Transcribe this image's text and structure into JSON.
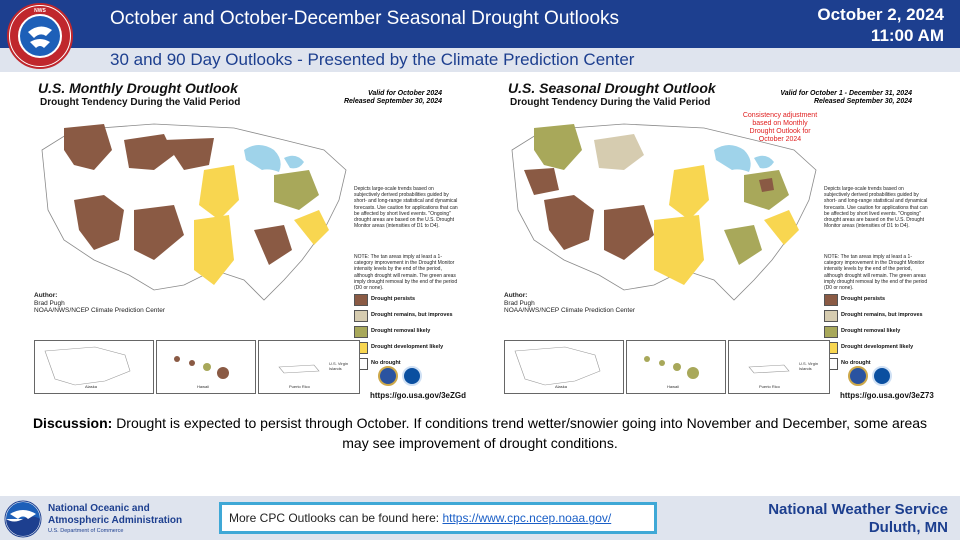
{
  "header": {
    "title": "October and October-December Seasonal Drought Outlooks",
    "subtitle": "30 and 90 Day Outlooks - Presented by the Climate Prediction Center",
    "date": "October 2, 2024",
    "time": "11:00 AM",
    "logo_icon": "nws-logo-icon"
  },
  "colors": {
    "header_blue": "#1d3f8f",
    "persists": "#8a5a44",
    "remains_improves": "#d6ccb0",
    "removal": "#a8a85a",
    "development": "#f8d650",
    "water": "#9fd3ea",
    "cpc_border": "#3fa8d6"
  },
  "monthly": {
    "title": "U.S. Monthly Drought Outlook",
    "subtitle": "Drought Tendency During the Valid Period",
    "valid": "Valid for October 2024",
    "released": "Released September 30, 2024",
    "note1": "Depicts large-scale trends based on subjectively derived probabilities guided by short- and long-range statistical and dynamical forecasts. Use caution for applications that can be affected by short lived events. \"Ongoing\" drought areas are based on the U.S. Drought Monitor areas (intensities of D1 to D4).",
    "note2": "NOTE: The tan areas imply at least a 1-category improvement in the Drought Monitor intensity levels by the end of the period, although drought will remain. The green areas imply drought removal by the end of the period (D0 or none).",
    "author_label": "Author:",
    "author": "Brad Pugh",
    "org": "NOAA/NWS/NCEP Climate Prediction Center",
    "link": "https://go.usa.gov/3eZGd",
    "inset_alaska": "Alaska",
    "inset_hawaii": "Hawaii",
    "inset_pr": "Puerto Rico",
    "inset_vi": "U.S. Virgin Islands"
  },
  "seasonal": {
    "title": "U.S. Seasonal Drought Outlook",
    "subtitle": "Drought Tendency During the Valid Period",
    "valid": "Valid for October 1 - December 31, 2024",
    "released": "Released September 30, 2024",
    "consistency": "Consistency adjustment based on Monthly Drought Outlook for October 2024",
    "note1": "Depicts large-scale trends based on subjectively derived probabilities guided by short- and long-range statistical and dynamical forecasts. Use caution for applications that can be affected by short lived events. \"Ongoing\" drought areas are based on the U.S. Drought Monitor areas (intensities of D1 to D4).",
    "note2": "NOTE: The tan areas imply at least a 1-category improvement in the Drought Monitor intensity levels by the end of the period, although drought will remain. The green areas imply drought removal by the end of the period (D0 or none).",
    "author_label": "Author:",
    "author": "Brad Pugh",
    "org": "NOAA/NWS/NCEP Climate Prediction Center",
    "link": "https://go.usa.gov/3eZ73",
    "inset_alaska": "Alaska",
    "inset_hawaii": "Hawaii",
    "inset_pr": "Puerto Rico",
    "inset_vi": "U.S. Virgin Islands"
  },
  "legend": [
    "Drought persists",
    "Drought remains, but improves",
    "Drought removal likely",
    "Drought development likely",
    "No drought"
  ],
  "discussion": {
    "label": "Discussion:",
    "text": "Drought is expected to persist through October. If conditions trend wetter/snowier going into November and December, some areas may see improvement of drought conditions."
  },
  "footer": {
    "noaa_line1": "National Oceanic and",
    "noaa_line2": "Atmospheric Administration",
    "noaa_dept": "U.S. Department of Commerce",
    "cpc_text": "More CPC Outlooks can be found here: ",
    "cpc_link": "https://www.cpc.ncep.noaa.gov/",
    "office_line1": "National Weather Service",
    "office_line2": "Duluth, MN"
  }
}
